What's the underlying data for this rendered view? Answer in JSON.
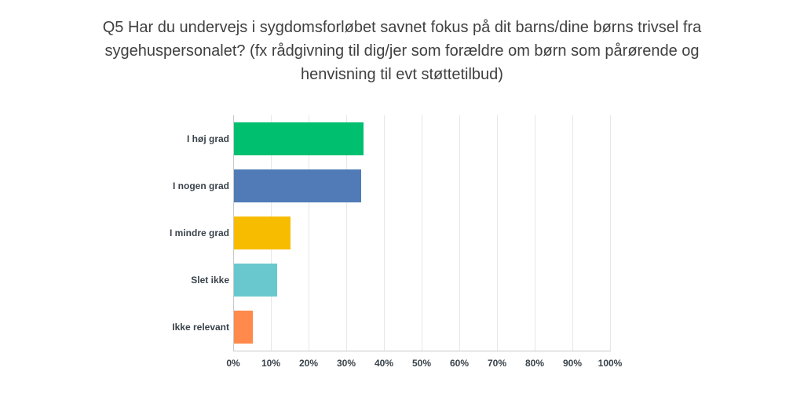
{
  "title_lines": [
    "Q5 Har du undervejs i sygdomsforløbet savnet fokus på dit barns/dine børns trivsel fra",
    "sygehuspersonalet? (fx rådgivning til dig/jer som forældre om børn som pårørende og",
    "henvisning til evt støttetilbud)"
  ],
  "chart_data": {
    "type": "bar",
    "orientation": "horizontal",
    "title": "Q5 Har du undervejs i sygdomsforløbet savnet fokus på dit barns/dine børns trivsel fra sygehuspersonalet? (fx rådgivning til dig/jer som forældre om børn som pårørende og henvisning til evt støttetilbud)",
    "categories": [
      "I høj grad",
      "I nogen grad",
      "I mindre grad",
      "Slet ikke",
      "Ikke relevant"
    ],
    "values": [
      34.3,
      33.7,
      14.9,
      11.5,
      5.1
    ],
    "bar_colors": [
      "#00bf6f",
      "#507bb6",
      "#f7bc00",
      "#69c8cd",
      "#ff8a4c"
    ],
    "xlabel": "",
    "ylabel": "",
    "xlim": [
      0,
      100
    ],
    "x_ticks": [
      "0%",
      "10%",
      "20%",
      "30%",
      "40%",
      "50%",
      "60%",
      "70%",
      "80%",
      "90%",
      "100%"
    ],
    "grid": true,
    "legend": false
  },
  "styles": {
    "title_color": "#404040",
    "label_color": "#39424a",
    "grid_color": "#e7e7e7",
    "axis_color": "#c9c9c9",
    "background": "#ffffff"
  }
}
